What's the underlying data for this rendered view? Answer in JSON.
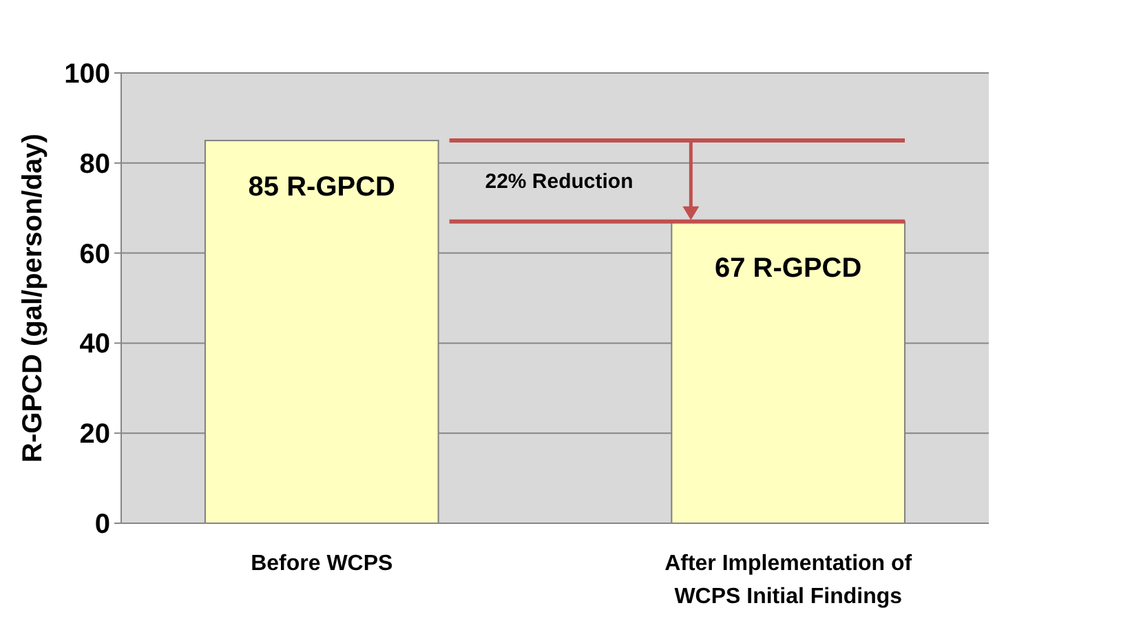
{
  "chart_data": {
    "type": "bar",
    "ylabel": "R-GPCD (gal/person/day)",
    "categories": [
      "Before WCPS",
      "After Implementation of\nWCPS Initial Findings"
    ],
    "values": [
      85,
      67
    ],
    "color": "#ffffc0",
    "value_labels": [
      "85 R-GPCD",
      "67 R-GPCD"
    ],
    "ylim": [
      0,
      100
    ],
    "yticks": [
      0,
      20,
      40,
      60,
      80,
      100
    ],
    "grid": "y",
    "ref_lines": [
      {
        "axis": "y",
        "value": 85,
        "color": "#c0504d"
      },
      {
        "axis": "y",
        "value": 67,
        "color": "#c0504d"
      }
    ],
    "annotations": [
      "22% Reduction"
    ]
  }
}
